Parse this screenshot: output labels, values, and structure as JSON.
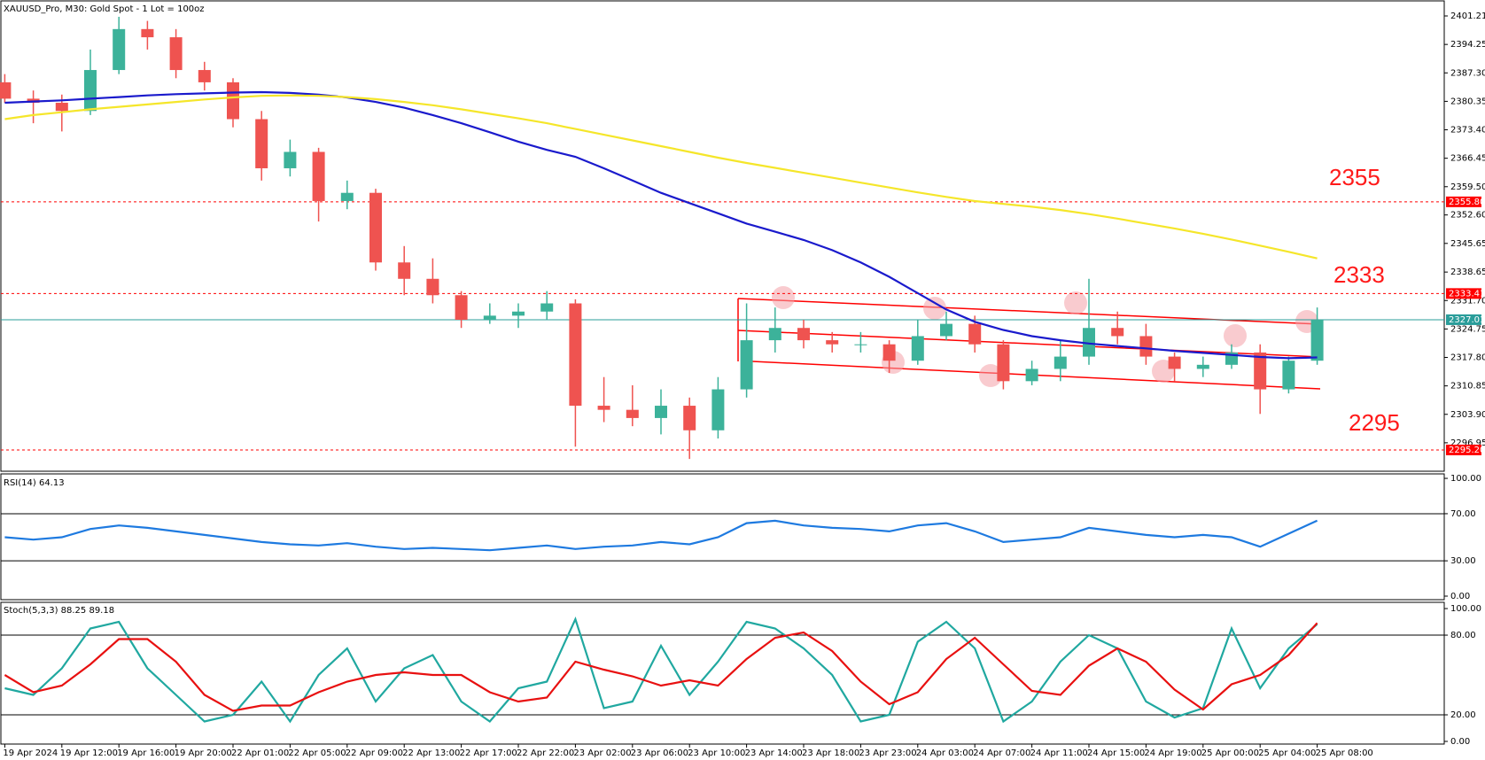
{
  "chart_data": [
    {
      "type": "candlestick",
      "title": "XAUUSD_Pro, M30:  Gold  Spot - 1 Lot = 100oz",
      "categories": [
        "19 Apr 2024",
        null,
        "19 Apr 12:00",
        null,
        "19 Apr 16:00",
        null,
        "19 Apr 20:00",
        null,
        "22 Apr 01:00",
        null,
        "22 Apr 05:00",
        null,
        "22 Apr 09:00",
        null,
        "22 Apr 13:00",
        null,
        "22 Apr 17:00",
        null,
        "22 Apr 22:00",
        null,
        "23 Apr 02:00",
        null,
        "23 Apr 06:00",
        null,
        "23 Apr 10:00",
        null,
        "23 Apr 14:00",
        null,
        "23 Apr 18:00",
        null,
        "23 Apr 23:00",
        null,
        "24 Apr 03:00",
        null,
        "24 Apr 07:00",
        null,
        "24 Apr 11:00",
        null,
        "24 Apr 15:00",
        null,
        "24 Apr 19:00",
        null,
        "25 Apr 00:00",
        null,
        "25 Apr 04:00",
        null,
        "25 Apr 08:00"
      ],
      "open": [
        2385,
        2381,
        2380,
        2378,
        2388,
        2398,
        2396,
        2388,
        2385,
        2376,
        2364,
        2368,
        2356,
        2358,
        2341,
        2337,
        2333,
        2327,
        2328,
        2329,
        2331,
        2306,
        2305,
        2303,
        2306,
        2300,
        2310,
        2322,
        2325,
        2322,
        2321,
        2321,
        2317,
        2323,
        2326,
        2321,
        2312,
        2315,
        2318,
        2325,
        2323,
        2318,
        2315,
        2316,
        2319,
        2310,
        2317
      ],
      "high": [
        2387,
        2383,
        2382,
        2393,
        2401,
        2400,
        2398,
        2390,
        2386,
        2378,
        2371,
        2369,
        2361,
        2359,
        2345,
        2342,
        2334,
        2331,
        2331,
        2334,
        2332,
        2313,
        2311,
        2310,
        2308,
        2313,
        2331,
        2330,
        2327,
        2324,
        2324,
        2322,
        2327,
        2329,
        2328,
        2322,
        2317,
        2322,
        2337,
        2329,
        2326,
        2319,
        2318,
        2321,
        2321,
        2318,
        2330
      ],
      "low": [
        2380,
        2375,
        2373,
        2377,
        2387,
        2393,
        2386,
        2383,
        2374,
        2361,
        2362,
        2351,
        2354,
        2339,
        2333,
        2331,
        2325,
        2326,
        2325,
        2327,
        2296,
        2302,
        2301,
        2299,
        2293,
        2298,
        2308,
        2319,
        2320,
        2319,
        2319,
        2314,
        2316,
        2322,
        2319,
        2310,
        2311,
        2312,
        2316,
        2321,
        2316,
        2312,
        2313,
        2315,
        2304,
        2309,
        2316
      ],
      "close": [
        2381,
        2380,
        2378,
        2388,
        2398,
        2396,
        2388,
        2385,
        2376,
        2364,
        2368,
        2356,
        2358,
        2341,
        2337,
        2333,
        2327,
        2328,
        2329,
        2331,
        2306,
        2305,
        2303,
        2306,
        2300,
        2310,
        2322,
        2325,
        2322,
        2321,
        2321,
        2317,
        2323,
        2326,
        2321,
        2312,
        2315,
        2318,
        2325,
        2323,
        2318,
        2315,
        2316,
        2319,
        2310,
        2317,
        2327
      ],
      "up_color": "#3cb29a",
      "down_color": "#ef5350",
      "series": [
        {
          "color": "#1a1acc",
          "values": [
            2380,
            2380.3,
            2380.6,
            2381,
            2381.4,
            2381.8,
            2382.1,
            2382.3,
            2382.5,
            2382.6,
            2382.4,
            2382,
            2381.3,
            2380.2,
            2378.8,
            2377,
            2375,
            2372.8,
            2370.5,
            2368.5,
            2366.8,
            2364,
            2361,
            2358,
            2355.5,
            2353,
            2350.5,
            2348.5,
            2346.5,
            2344,
            2341,
            2337.5,
            2333.5,
            2329.5,
            2326.5,
            2324.5,
            2323,
            2322,
            2321.2,
            2320.6,
            2320,
            2319.4,
            2318.9,
            2318.4,
            2317.9,
            2317.6,
            2317.8
          ]
        },
        {
          "color": "#f5e62a",
          "values": [
            2376,
            2377,
            2377.7,
            2378.4,
            2379,
            2379.6,
            2380.2,
            2380.8,
            2381.3,
            2381.7,
            2381.8,
            2381.7,
            2381.4,
            2380.9,
            2380.2,
            2379.4,
            2378.4,
            2377.3,
            2376.2,
            2375,
            2373.6,
            2372.2,
            2370.8,
            2369.4,
            2368,
            2366.6,
            2365.3,
            2364.1,
            2362.9,
            2361.7,
            2360.5,
            2359.3,
            2358.1,
            2357,
            2356,
            2355.3,
            2354.6,
            2353.8,
            2352.8,
            2351.7,
            2350.5,
            2349.3,
            2348,
            2346.6,
            2345.1,
            2343.6,
            2342
          ]
        }
      ],
      "ylim": [
        2290.0,
        2404.67
      ],
      "yticks": [
        2401.21,
        2394.25,
        {
          "value": 2387.3,
          "label": "2387.30"
        },
        2380.35,
        {
          "value": 2373.4,
          "label": "2373.40"
        },
        2366.45,
        {
          "value": 2359.5,
          "label": "2359.50"
        },
        {
          "value": 2352.6,
          "label": "2352.60"
        },
        2345.65,
        2338.65,
        {
          "value": 2331.7,
          "label": "2331.70"
        },
        2324.75,
        {
          "value": 2317.8,
          "label": "2317.80"
        },
        2310.85,
        {
          "value": 2303.9,
          "label": "2303.90"
        },
        2296.95
      ],
      "grid": false,
      "levels": [
        {
          "value": 2355.8,
          "label": "2355.80",
          "color": "#ff0000",
          "style": "dashed"
        },
        {
          "value": 2333.41,
          "label": "2333.41",
          "color": "#ff0000",
          "style": "dashed"
        },
        {
          "value": 2327.01,
          "label": "2327.01",
          "color": "#2a9d9a",
          "style": "solid"
        },
        {
          "value": 2295.2,
          "label": "2295.20",
          "color": "#ff0000",
          "style": "dashed"
        }
      ],
      "annotations": [
        "2355",
        "2333",
        "2295"
      ]
    },
    {
      "type": "line",
      "title": "RSI(14) 64.13",
      "series": [
        {
          "color": "#1e7ae0",
          "values": [
            50,
            48,
            50,
            57,
            60,
            58,
            55,
            52,
            49,
            46,
            44,
            43,
            45,
            42,
            40,
            41,
            40,
            39,
            41,
            43,
            40,
            42,
            43,
            46,
            44,
            50,
            62,
            64,
            60,
            58,
            57,
            55,
            60,
            62,
            55,
            46,
            48,
            50,
            58,
            55,
            52,
            50,
            52,
            50,
            42,
            53,
            64.13
          ]
        }
      ],
      "ylim": [
        -3,
        103.8
      ],
      "yticks": [
        {
          "value": 100,
          "label": "100.00"
        },
        {
          "value": 70,
          "label": "70.00"
        },
        {
          "value": 30,
          "label": "30.00"
        },
        {
          "value": 0,
          "label": "0.00"
        }
      ],
      "levels": [
        70,
        30
      ]
    },
    {
      "type": "line",
      "title": "Stoch(5,3,3) 88.25 89.18",
      "series": [
        {
          "color": "#20a8a0",
          "values": [
            40,
            35,
            55,
            85,
            90,
            55,
            35,
            15,
            20,
            45,
            15,
            50,
            70,
            30,
            55,
            65,
            30,
            15,
            40,
            45,
            92,
            25,
            30,
            72,
            35,
            60,
            90,
            85,
            70,
            50,
            15,
            20,
            75,
            90,
            70,
            15,
            30,
            60,
            80,
            70,
            30,
            18,
            25,
            85,
            40,
            70,
            88.25
          ]
        },
        {
          "color": "#e81010",
          "values": [
            50,
            37,
            42,
            58,
            77,
            77,
            60,
            35,
            23,
            27,
            27,
            37,
            45,
            50,
            52,
            50,
            50,
            37,
            30,
            33,
            60,
            54,
            49,
            42,
            46,
            42,
            62,
            78,
            82,
            68,
            45,
            28,
            37,
            62,
            78,
            58,
            38,
            35,
            57,
            70,
            60,
            39,
            24,
            43,
            50,
            65,
            89.18
          ]
        }
      ],
      "ylim": [
        -2,
        104.7
      ],
      "yticks": [
        {
          "value": 100,
          "label": "100.00"
        },
        {
          "value": 80,
          "label": "80.00"
        },
        {
          "value": 20,
          "label": "20.00"
        },
        {
          "value": 0,
          "label": "0.00"
        }
      ],
      "levels": [
        80,
        20
      ]
    }
  ]
}
